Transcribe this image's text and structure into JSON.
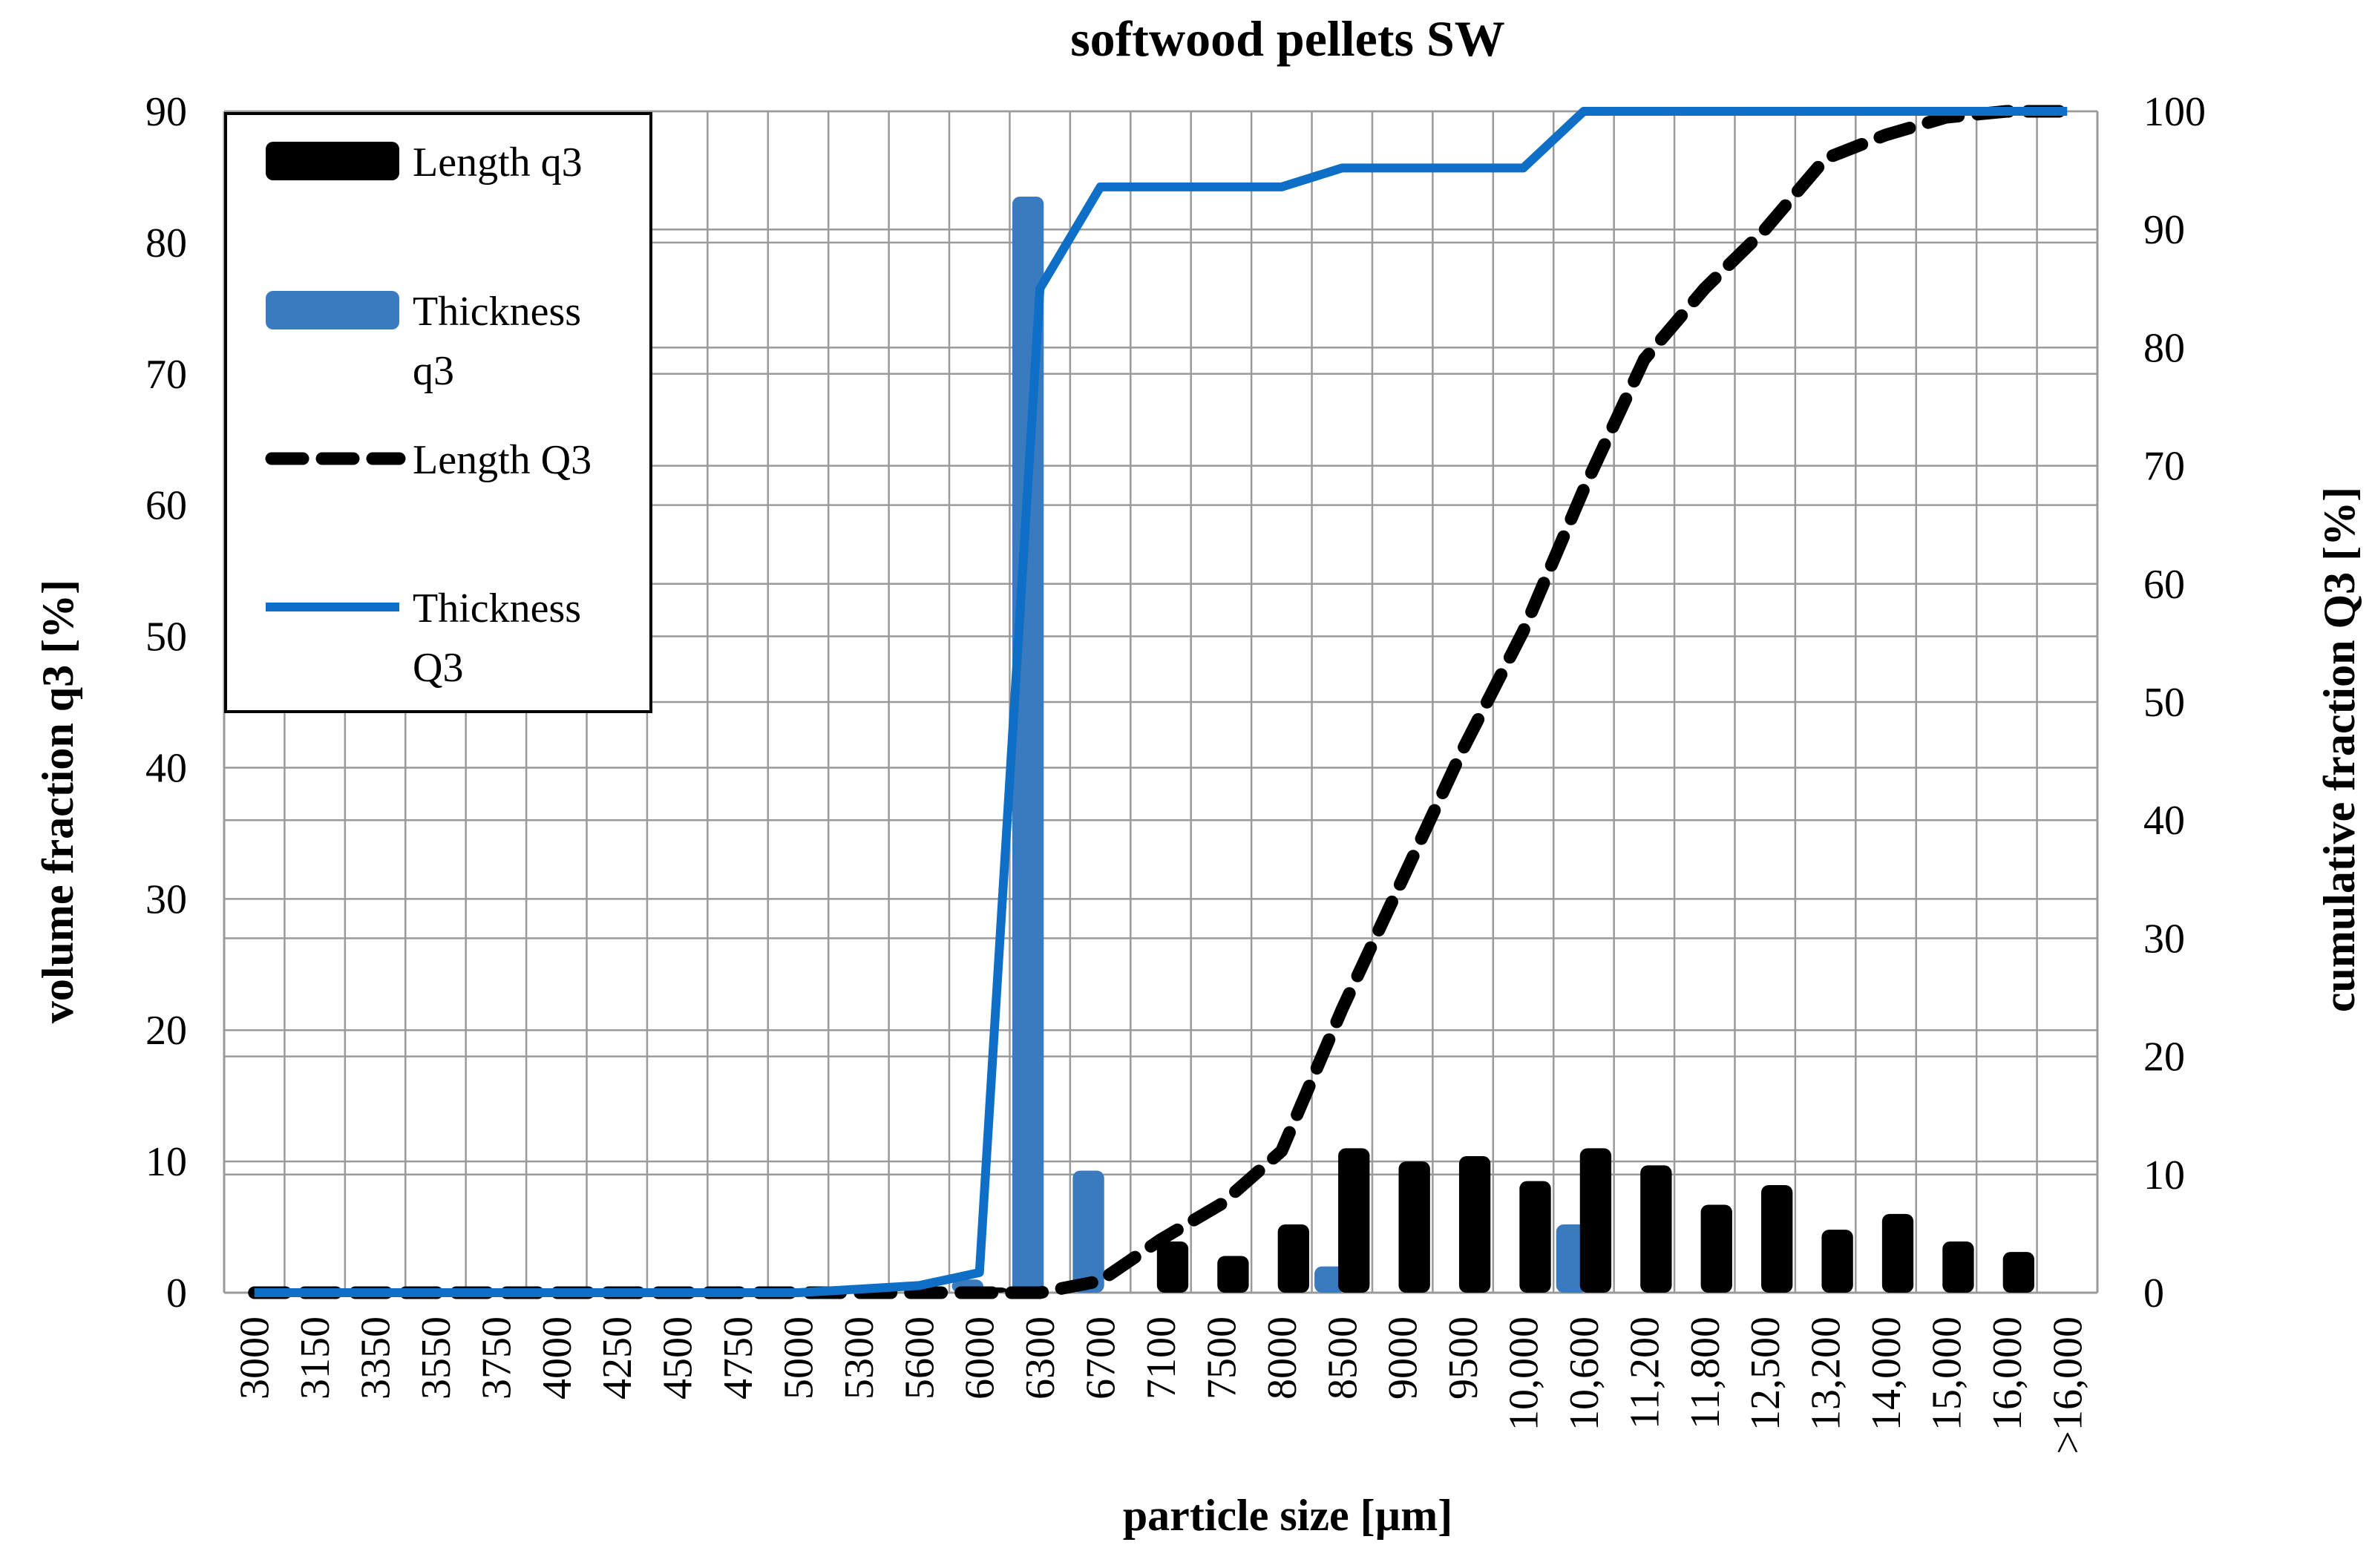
{
  "chart_data": {
    "type": "bar",
    "title": "softwood pellets SW",
    "xlabel": "particle size [µm]",
    "ylabel": "volume fraction q3 [%]",
    "y2label": "cumulative fraction Q3 [%]",
    "ylim": [
      0,
      90
    ],
    "y2lim": [
      0,
      100
    ],
    "yticks": [
      0,
      10,
      20,
      30,
      40,
      50,
      60,
      70,
      80,
      90
    ],
    "y2ticks": [
      0,
      10,
      20,
      30,
      40,
      50,
      60,
      70,
      80,
      90,
      100
    ],
    "legend_position": "top-left",
    "categories": [
      "3000",
      "3150",
      "3350",
      "3550",
      "3750",
      "4000",
      "4250",
      "4500",
      "4750",
      "5000",
      "5300",
      "5600",
      "6000",
      "6300",
      "6700",
      "7100",
      "7500",
      "8000",
      "8500",
      "9000",
      "9500",
      "10,000",
      "10,600",
      "11,200",
      "11,800",
      "12,500",
      "13,200",
      "14,000",
      "15,000",
      "16,000",
      ">16,000"
    ],
    "series": [
      {
        "name": "Length q3",
        "type": "bar",
        "axis": "left",
        "color": "#000000",
        "values": [
          0,
          0.2,
          0,
          0,
          0.2,
          0,
          0,
          0,
          0,
          0,
          0,
          0,
          0.4,
          0,
          0,
          3.9,
          2.8,
          5.2,
          11.0,
          10.0,
          10.4,
          8.5,
          11.0,
          9.7,
          6.7,
          8.2,
          4.8,
          6.0,
          3.9,
          3.1,
          0
        ]
      },
      {
        "name": "Thickness q3",
        "type": "bar",
        "axis": "left",
        "color": "#3a7bbf",
        "values": [
          0,
          0,
          0,
          0,
          0,
          0,
          0,
          0,
          0,
          0,
          0,
          0,
          1.0,
          83.5,
          9.3,
          0,
          0,
          0,
          2.0,
          0,
          0,
          0,
          5.2,
          0,
          0,
          0,
          0,
          0,
          0,
          0,
          0
        ]
      },
      {
        "name": "Length Q3",
        "type": "line",
        "style": "dashed",
        "axis": "right",
        "color": "#000000",
        "values": [
          0,
          0,
          0,
          0,
          0,
          0,
          0,
          0,
          0,
          0,
          0,
          0,
          0,
          0,
          1,
          4.5,
          7.5,
          12,
          24,
          35,
          46,
          56,
          68,
          79,
          85,
          90,
          96,
          98,
          99.5,
          100,
          100
        ]
      },
      {
        "name": "Thickness Q3",
        "type": "line",
        "style": "solid",
        "axis": "right",
        "color": "#0f6fc6",
        "values": [
          0,
          0,
          0,
          0,
          0,
          0,
          0,
          0,
          0,
          0,
          0.3,
          0.6,
          1.7,
          85,
          93.6,
          93.6,
          93.6,
          93.6,
          95.2,
          95.2,
          95.2,
          95.2,
          100,
          100,
          100,
          100,
          100,
          100,
          100,
          100,
          100
        ]
      }
    ],
    "legend": [
      {
        "lines": [
          "Length q3"
        ]
      },
      {
        "lines": [
          "Thickness",
          "q3"
        ]
      },
      {
        "lines": [
          "Length Q3"
        ]
      },
      {
        "lines": [
          "Thickness",
          "Q3"
        ]
      }
    ]
  }
}
